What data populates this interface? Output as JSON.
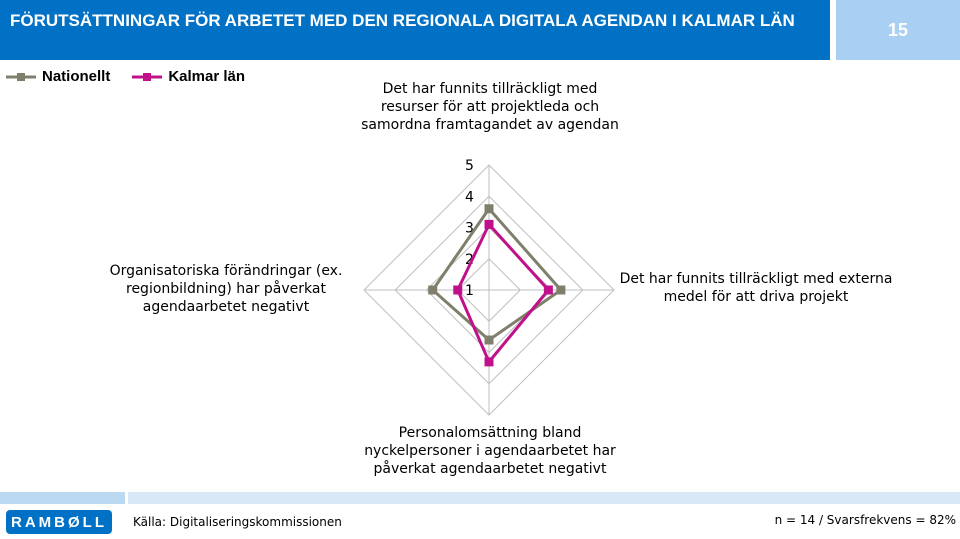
{
  "header": {
    "title": "FÖRUTSÄTTNINGAR FÖR ARBETET MED DEN REGIONALA DIGITALA AGENDAN I KALMAR LÄN",
    "page_number": "15"
  },
  "footer": {
    "logo_text": "RAMBØLL",
    "source": "Källa: Digitaliseringskommissionen",
    "stats": "n = 14 / Svarsfrekvens = 82%"
  },
  "chart_data": {
    "type": "radar",
    "title": "",
    "axes": [
      "Det har funnits tillräckligt med resurser för att projektleda och samordna framtagandet av agendan",
      "Det har funnits tillräckligt med externa medel för att driva projekt",
      "Personalomsättning bland nyckelpersoner i agendaarbetet har påverkat agendaarbetet negativt",
      "Organisatoriska förändringar (ex. regionbildning) har påverkat agendaarbetet negativt"
    ],
    "scale": {
      "min": 1,
      "max": 5,
      "ticks": [
        "1",
        "2",
        "3",
        "4",
        "5"
      ]
    },
    "series": [
      {
        "name": "Nationellt",
        "color": "#7f7f6b",
        "values": [
          3.6,
          3.3,
          2.6,
          2.8
        ]
      },
      {
        "name": "Kalmar län",
        "color": "#c0108a",
        "values": [
          3.1,
          2.9,
          3.3,
          2.0
        ]
      }
    ],
    "legend_position": "top-left"
  }
}
